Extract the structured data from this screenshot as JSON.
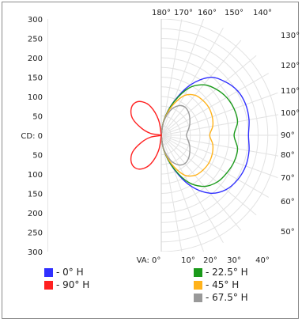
{
  "chart_data": {
    "type": "polar",
    "cd_ticks": [
      "300",
      "250",
      "200",
      "150",
      "100",
      "50",
      "CD: 0",
      "50",
      "100",
      "150",
      "200",
      "250",
      "300"
    ],
    "cd_range": [
      0,
      300
    ],
    "vertical_angle_labels": [
      "VA: 0°",
      "10°",
      "20°",
      "30°",
      "40°"
    ],
    "vertical_angle_top_labels": [
      "180°",
      "170°",
      "160°",
      "150°",
      "140°"
    ],
    "vertical_angle_right_labels": [
      "130°",
      "120°",
      "110°",
      "100°",
      "90°",
      "80°",
      "70°",
      "60°",
      "50°"
    ],
    "series": [
      {
        "name": "- 0° H",
        "color": "#3030ff",
        "side": "right",
        "angles": [
          0,
          10,
          20,
          30,
          40,
          50,
          60,
          70,
          80,
          90,
          100,
          110,
          120,
          130,
          140,
          150,
          160,
          170,
          180
        ],
        "values": [
          0,
          40,
          90,
          150,
          195,
          218,
          228,
          232,
          230,
          225,
          230,
          232,
          228,
          215,
          195,
          150,
          90,
          40,
          0
        ]
      },
      {
        "name": "- 22.5° H",
        "color": "#1a9a1a",
        "side": "right",
        "angles": [
          0,
          10,
          20,
          30,
          40,
          50,
          60,
          70,
          80,
          90,
          100,
          110,
          120,
          130,
          140,
          150,
          160,
          170,
          180
        ],
        "values": [
          0,
          40,
          88,
          140,
          172,
          188,
          195,
          200,
          200,
          188,
          200,
          200,
          195,
          185,
          170,
          140,
          88,
          40,
          0
        ]
      },
      {
        "name": "- 45° H",
        "color": "#ffb21a",
        "side": "right",
        "angles": [
          0,
          10,
          20,
          30,
          40,
          50,
          60,
          70,
          80,
          90,
          100,
          110,
          120,
          130,
          140,
          150,
          160,
          170,
          180
        ],
        "values": [
          0,
          38,
          80,
          118,
          135,
          140,
          142,
          140,
          135,
          125,
          135,
          140,
          142,
          140,
          135,
          118,
          80,
          38,
          0
        ]
      },
      {
        "name": "- 67.5° H",
        "color": "#999999",
        "side": "right",
        "angles": [
          0,
          10,
          20,
          30,
          40,
          50,
          60,
          70,
          80,
          90,
          100,
          110,
          120,
          130,
          140,
          150,
          160,
          170,
          180
        ],
        "values": [
          0,
          35,
          68,
          88,
          95,
          92,
          85,
          78,
          70,
          65,
          70,
          78,
          85,
          92,
          95,
          88,
          68,
          35,
          0
        ]
      },
      {
        "name": "- 90° H",
        "color": "#ff2020",
        "side": "left",
        "angles": [
          0,
          10,
          20,
          30,
          40,
          50,
          60,
          70,
          80,
          90,
          100,
          110,
          120,
          130,
          140,
          150,
          160,
          170,
          180
        ],
        "values": [
          0,
          40,
          78,
          100,
          108,
          102,
          85,
          55,
          28,
          0,
          28,
          55,
          85,
          102,
          108,
          100,
          78,
          40,
          0
        ]
      }
    ],
    "grid": true
  }
}
